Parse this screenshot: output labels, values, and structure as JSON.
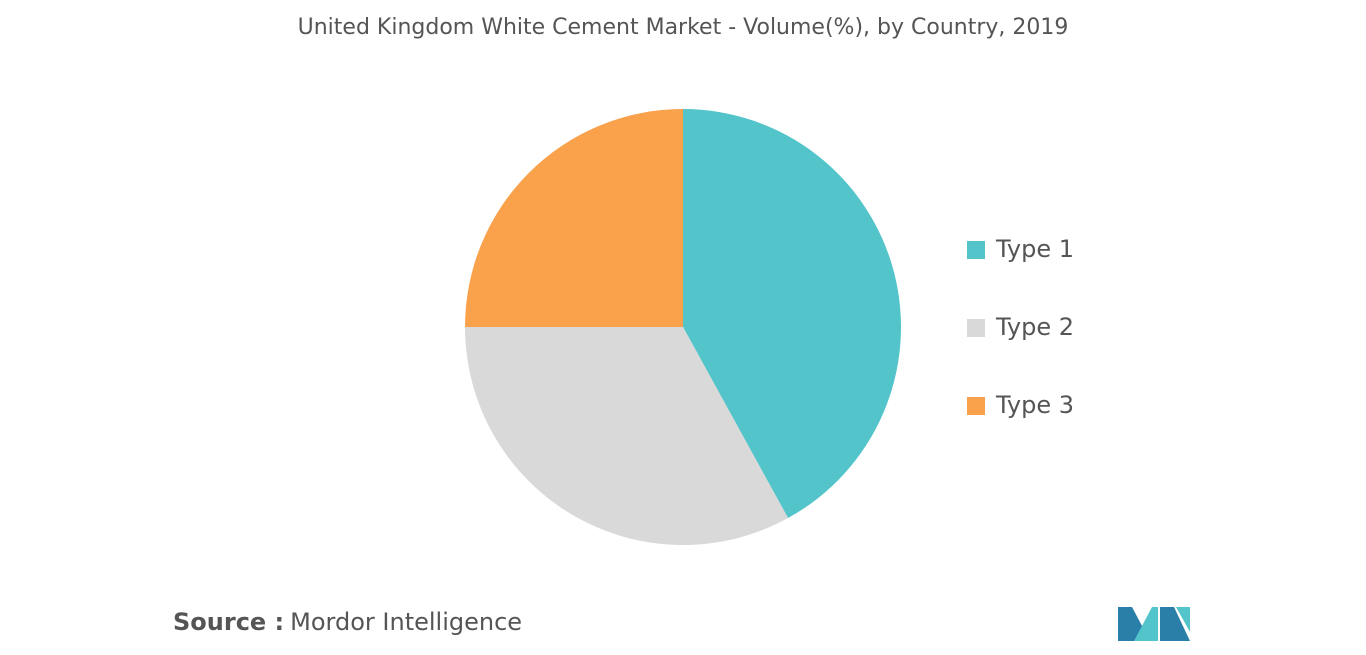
{
  "chart_data": {
    "type": "pie",
    "title": "United Kingdom White Cement Market - Volume(%), by Country, 2019",
    "categories": [
      "Type 1",
      "Type 2",
      "Type 3"
    ],
    "values": [
      42,
      33,
      25
    ],
    "colors": [
      "#52c4ca",
      "#d9d9d9",
      "#f9a14b"
    ],
    "legend": "right"
  },
  "footer": {
    "source_label": "Source :",
    "source": "Mordor Intelligence"
  }
}
